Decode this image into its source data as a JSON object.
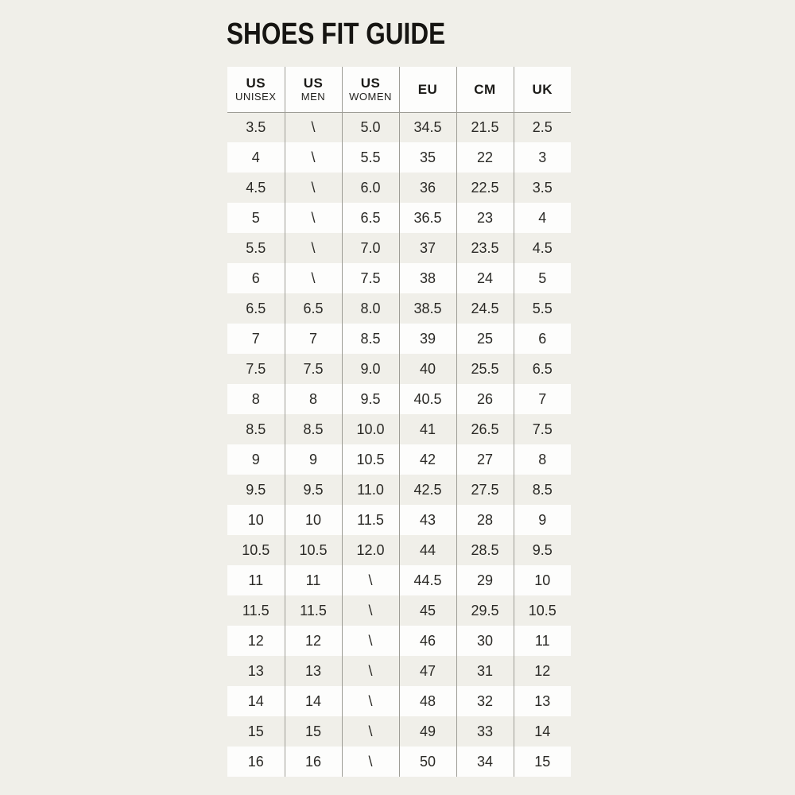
{
  "colors": {
    "background": "#f0efe9",
    "row_white": "#fdfdfc",
    "divider": "#9e9d96",
    "text": "#2b2a26",
    "title": "#161512"
  },
  "chart_data": {
    "type": "table",
    "title": "SHOES FIT GUIDE",
    "columns": [
      {
        "main": "US",
        "sub": "UNISEX"
      },
      {
        "main": "US",
        "sub": "MEN"
      },
      {
        "main": "US",
        "sub": "WOMEN"
      },
      {
        "main": "EU",
        "sub": ""
      },
      {
        "main": "CM",
        "sub": ""
      },
      {
        "main": "UK",
        "sub": ""
      }
    ],
    "rows": [
      [
        "3.5",
        "\\",
        "5.0",
        "34.5",
        "21.5",
        "2.5"
      ],
      [
        "4",
        "\\",
        "5.5",
        "35",
        "22",
        "3"
      ],
      [
        "4.5",
        "\\",
        "6.0",
        "36",
        "22.5",
        "3.5"
      ],
      [
        "5",
        "\\",
        "6.5",
        "36.5",
        "23",
        "4"
      ],
      [
        "5.5",
        "\\",
        "7.0",
        "37",
        "23.5",
        "4.5"
      ],
      [
        "6",
        "\\",
        "7.5",
        "38",
        "24",
        "5"
      ],
      [
        "6.5",
        "6.5",
        "8.0",
        "38.5",
        "24.5",
        "5.5"
      ],
      [
        "7",
        "7",
        "8.5",
        "39",
        "25",
        "6"
      ],
      [
        "7.5",
        "7.5",
        "9.0",
        "40",
        "25.5",
        "6.5"
      ],
      [
        "8",
        "8",
        "9.5",
        "40.5",
        "26",
        "7"
      ],
      [
        "8.5",
        "8.5",
        "10.0",
        "41",
        "26.5",
        "7.5"
      ],
      [
        "9",
        "9",
        "10.5",
        "42",
        "27",
        "8"
      ],
      [
        "9.5",
        "9.5",
        "11.0",
        "42.5",
        "27.5",
        "8.5"
      ],
      [
        "10",
        "10",
        "11.5",
        "43",
        "28",
        "9"
      ],
      [
        "10.5",
        "10.5",
        "12.0",
        "44",
        "28.5",
        "9.5"
      ],
      [
        "11",
        "11",
        "\\",
        "44.5",
        "29",
        "10"
      ],
      [
        "11.5",
        "11.5",
        "\\",
        "45",
        "29.5",
        "10.5"
      ],
      [
        "12",
        "12",
        "\\",
        "46",
        "30",
        "11"
      ],
      [
        "13",
        "13",
        "\\",
        "47",
        "31",
        "12"
      ],
      [
        "14",
        "14",
        "\\",
        "48",
        "32",
        "13"
      ],
      [
        "15",
        "15",
        "\\",
        "49",
        "33",
        "14"
      ],
      [
        "16",
        "16",
        "\\",
        "50",
        "34",
        "15"
      ]
    ]
  }
}
